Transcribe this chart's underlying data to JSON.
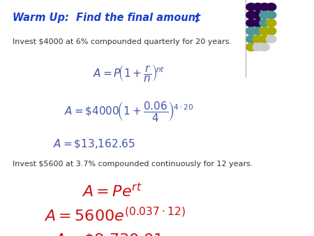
{
  "bg_color": "#ffffff",
  "title_part1": "Warm Up:  Find the final amount",
  "title_colon": ":",
  "title_color": "#1a3fcc",
  "problem1_text": "Invest $4000 at 6% compounded quarterly for 20 years.",
  "problem2_text": "Invest $5600 at 3.7% compounded continuously for 12 years.",
  "formula1_color": "#4455aa",
  "formula2_color": "#cc1111",
  "text_color": "#333333",
  "dot_rows": [
    [
      "#2d0050",
      "#2d0050",
      "#2d0050",
      "#2d0050"
    ],
    [
      "#2d0050",
      "#2d0050",
      "#4a9999",
      "#4a9999"
    ],
    [
      "#2d0050",
      "#2d0050",
      "#4a9999",
      "#aaaa00"
    ],
    [
      "#4a9999",
      "#4a9999",
      "#aaaa00",
      "#aaaa00"
    ],
    [
      "#4a9999",
      "#aaaa00",
      "#aaaa00",
      "#cccccc"
    ],
    [
      "#aaaa00",
      "#cccccc",
      "#cccccc",
      null
    ]
  ],
  "line_color": "#aaaaaa"
}
